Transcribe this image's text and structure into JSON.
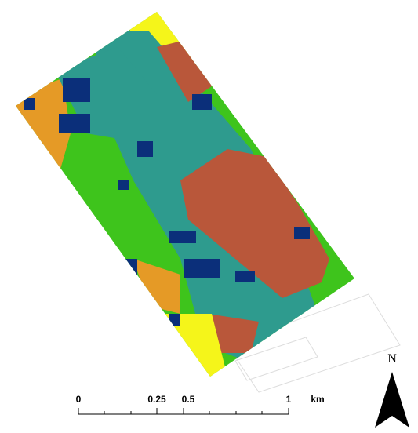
{
  "scale_bar": {
    "ticks": [
      "0",
      "0.25",
      "0.5",
      "1"
    ],
    "unit": "km"
  },
  "north_arrow": {
    "label": "N"
  }
}
